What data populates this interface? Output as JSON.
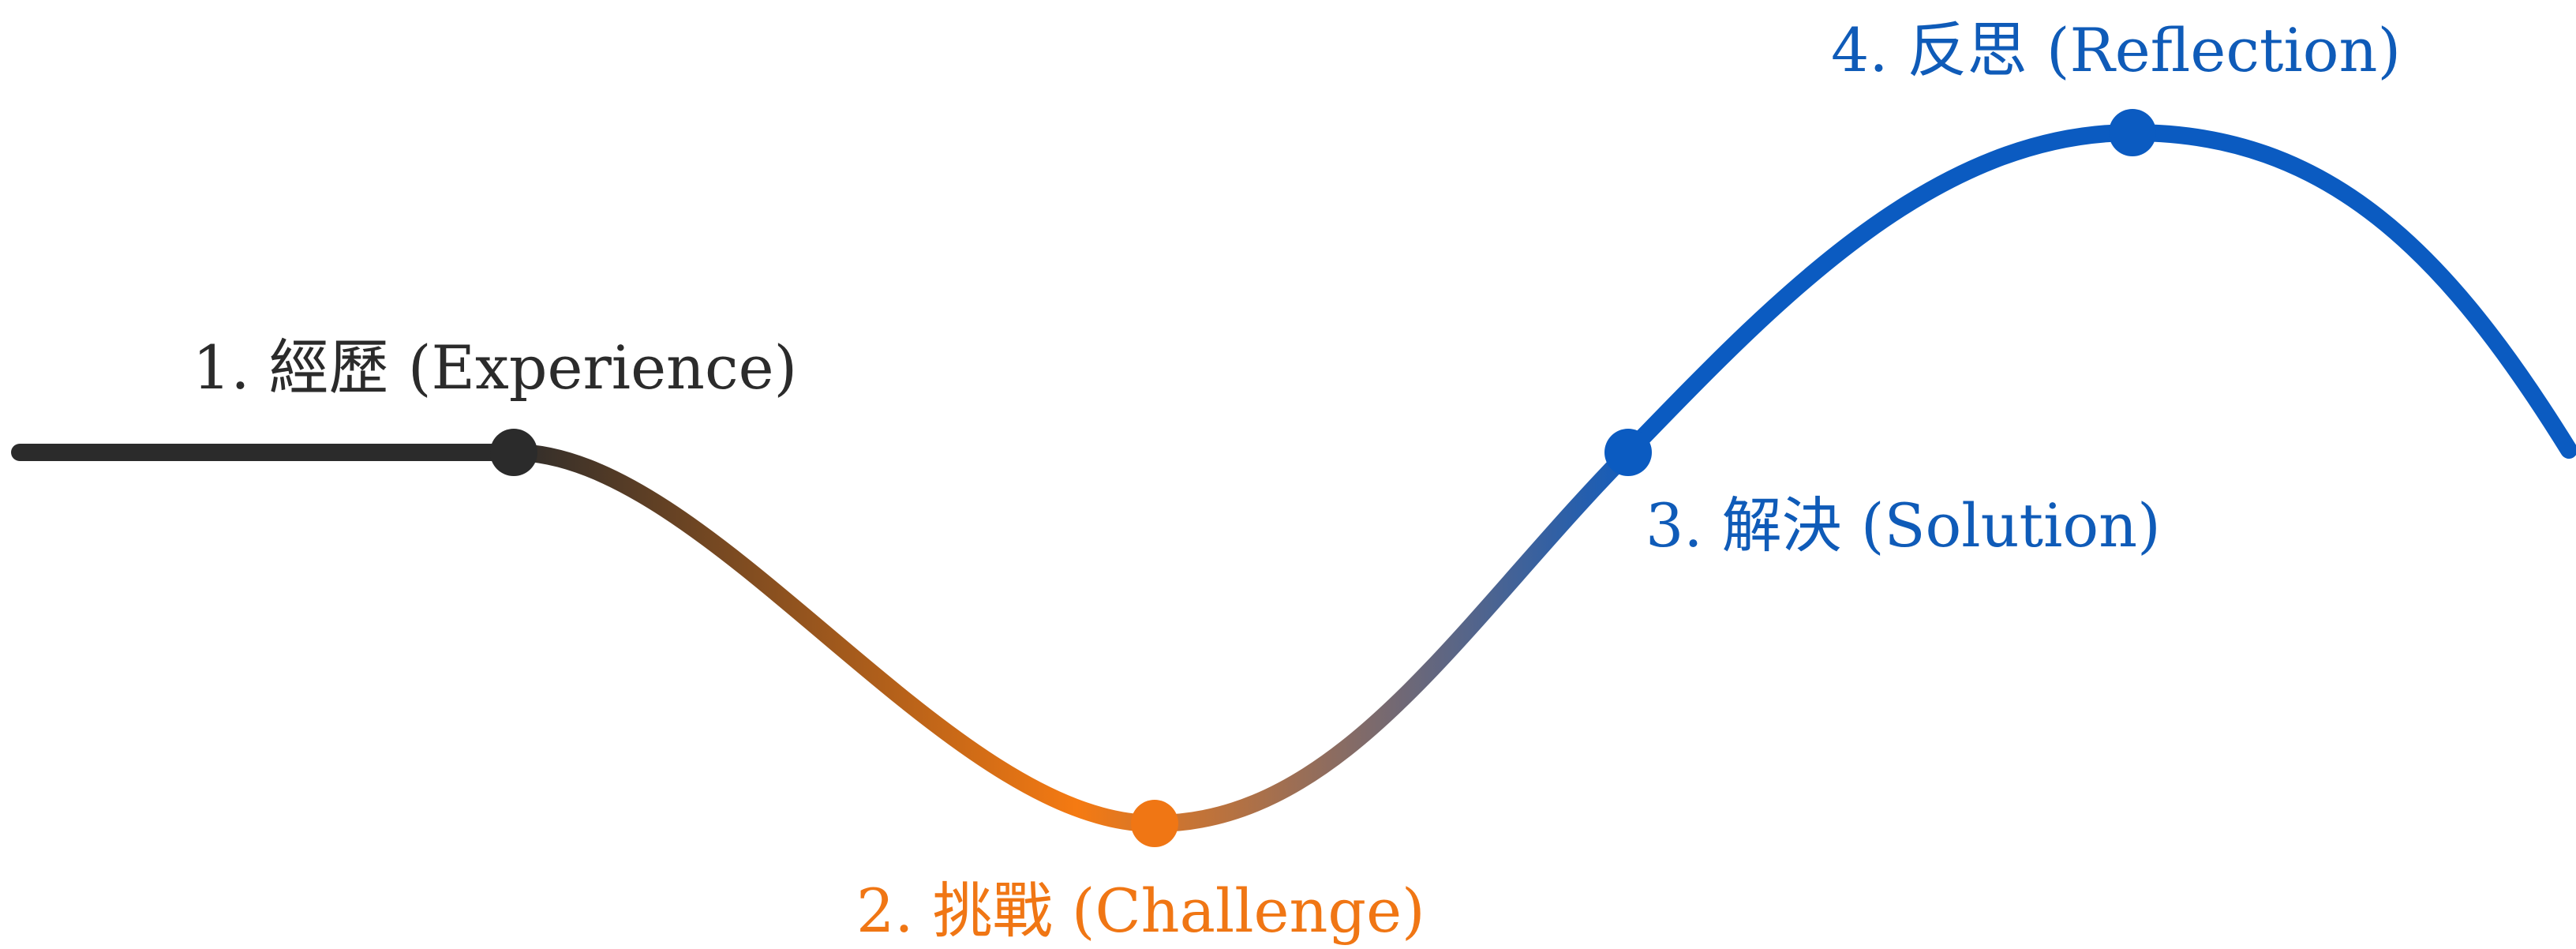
{
  "stages": [
    {
      "label": "1. 經歷 (Experience)",
      "color": "#2b2b2b"
    },
    {
      "label": "2. 挑戰 (Challenge)",
      "color": "#f07614"
    },
    {
      "label": "3. 解決 (Solution)",
      "color": "#0f5bb8"
    },
    {
      "label": "4. 反思 (Reflection)",
      "color": "#0f5bb8"
    }
  ],
  "colors": {
    "line_start": "#2b2b2b",
    "line_valley": "#f57a12",
    "line_end": "#0b5bc1",
    "background": "#ffffff"
  }
}
